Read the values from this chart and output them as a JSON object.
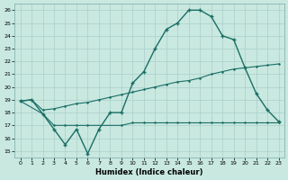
{
  "xlabel": "Humidex (Indice chaleur)",
  "ylabel": "",
  "xlim": [
    -0.5,
    23.5
  ],
  "ylim": [
    14.5,
    26.5
  ],
  "xticks": [
    0,
    1,
    2,
    3,
    4,
    5,
    6,
    7,
    8,
    9,
    10,
    11,
    12,
    13,
    14,
    15,
    16,
    17,
    18,
    19,
    20,
    21,
    22,
    23
  ],
  "yticks": [
    15,
    16,
    17,
    18,
    19,
    20,
    21,
    22,
    23,
    24,
    25,
    26
  ],
  "bg_color": "#c8e8e0",
  "grid_color": "#aacfca",
  "line_color": "#1a6e64",
  "line1_x": [
    0,
    1,
    2,
    3,
    4,
    5,
    6,
    7,
    8,
    9,
    10,
    11,
    12,
    13,
    14,
    15,
    16,
    17,
    18,
    19,
    20,
    21,
    22,
    23
  ],
  "line1_y": [
    18.9,
    19.0,
    17.9,
    16.7,
    15.5,
    16.7,
    14.8,
    16.7,
    18.0,
    18.0,
    20.3,
    21.2,
    23.0,
    24.5,
    25.0,
    26.0,
    26.0,
    25.5,
    24.0,
    23.7,
    21.5,
    19.5,
    18.2,
    17.3
  ],
  "line2_x": [
    0,
    2,
    3,
    4,
    5,
    6,
    9,
    10,
    11,
    12,
    13,
    14,
    15,
    16,
    17,
    18,
    19,
    20,
    21,
    22,
    23
  ],
  "line2_y": [
    18.9,
    17.9,
    17.0,
    17.0,
    17.0,
    17.0,
    17.0,
    17.2,
    17.2,
    17.2,
    17.2,
    17.2,
    17.2,
    17.2,
    17.2,
    17.2,
    17.2,
    17.2,
    17.2,
    17.2,
    17.2
  ],
  "line3_x": [
    0,
    1,
    2,
    3,
    4,
    5,
    6,
    7,
    8,
    9,
    10,
    11,
    12,
    13,
    14,
    15,
    16,
    17,
    18,
    19,
    20,
    21,
    22,
    23
  ],
  "line3_y": [
    18.9,
    19.0,
    18.2,
    18.3,
    18.5,
    18.7,
    18.8,
    19.0,
    19.2,
    19.4,
    19.6,
    19.8,
    20.0,
    20.2,
    20.4,
    20.5,
    20.7,
    21.0,
    21.2,
    21.4,
    21.5,
    21.6,
    21.7,
    21.8
  ]
}
